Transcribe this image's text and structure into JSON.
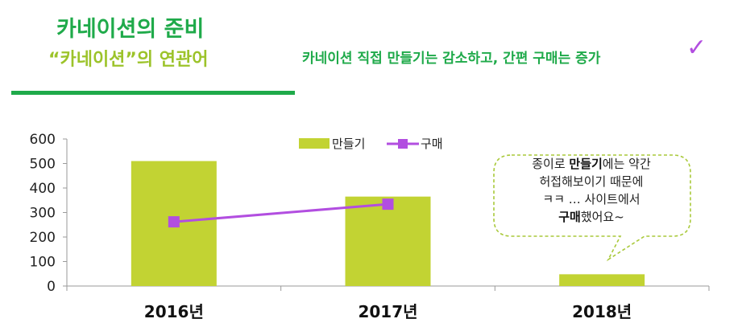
{
  "header": {
    "title": "카네이션의 준비",
    "subtitle": "“카네이션”의 연관어",
    "headline": "카네이션 직접 만들기는 감소하고, 간편 구매는 증가",
    "check_icon": "check-mark-icon"
  },
  "callout": {
    "line1_pre": "종이로 ",
    "line1_bold": "만들기",
    "line1_post": "에는 약간",
    "line2": "허접해보이기 때문에",
    "line3": "ㅋㅋ … 사이트에서",
    "line4_bold": "구매",
    "line4_post": "했어요~"
  },
  "chart_data": {
    "type": "bar",
    "categories": [
      "2016년",
      "2017년",
      "2018년"
    ],
    "series": [
      {
        "name": "만들기",
        "type": "bar",
        "values": [
          510,
          365,
          48
        ],
        "color": "#c2d333"
      },
      {
        "name": "구매",
        "type": "line",
        "values": [
          262,
          334,
          null
        ],
        "color": "#b24ee0"
      }
    ],
    "yticks": [
      0,
      100,
      200,
      300,
      400,
      500,
      600
    ],
    "ylim": [
      0,
      600
    ],
    "legend": "top-center"
  }
}
